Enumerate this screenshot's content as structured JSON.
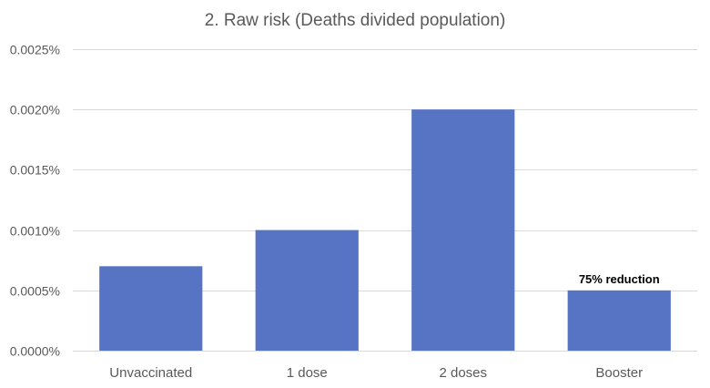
{
  "chart_data": {
    "type": "bar",
    "title": "2. Raw risk (Deaths divided population)",
    "categories": [
      "Unvaccinated",
      "1 dose",
      "2 doses",
      "Booster"
    ],
    "values": [
      0.0007,
      0.001,
      0.002,
      0.0005
    ],
    "value_unit": "%",
    "ylim": [
      0,
      0.0025
    ],
    "yticks": [
      "0.0000%",
      "0.0005%",
      "0.0010%",
      "0.0015%",
      "0.0020%",
      "0.0025%"
    ],
    "grid": true,
    "legend": "none",
    "bar_color": "#5673c4",
    "annotations": [
      {
        "category": "Booster",
        "text": "75% reduction"
      }
    ]
  }
}
